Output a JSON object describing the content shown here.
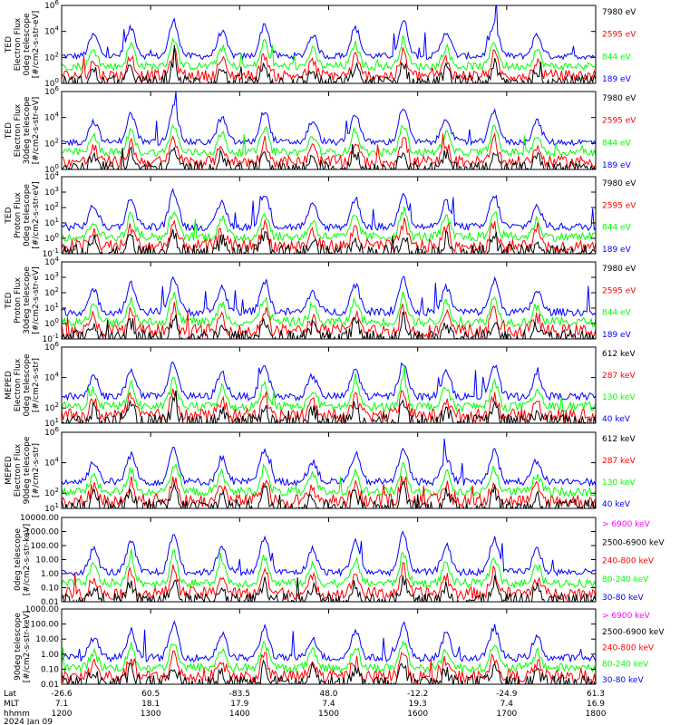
{
  "colors": {
    "black": "#000000",
    "blue": "#0000ff",
    "red": "#ff0000",
    "green": "#00ff00",
    "magenta": "#ff00ff"
  },
  "date_label": "2024 Jan 09",
  "bottom_axis": {
    "row_labels": [
      "Lat",
      "MLT",
      "hhmm"
    ],
    "ticks": [
      {
        "lat": "-26.6",
        "mlt": "7.1",
        "hhmm": "1200"
      },
      {
        "lat": "60.5",
        "mlt": "18.1",
        "hhmm": "1300"
      },
      {
        "lat": "-83.5",
        "mlt": "17.9",
        "hhmm": "1400"
      },
      {
        "lat": "48.0",
        "mlt": "7.4",
        "hhmm": "1500"
      },
      {
        "lat": "-12.2",
        "mlt": "19.3",
        "hhmm": "1600"
      },
      {
        "lat": "-24.9",
        "mlt": "7.4",
        "hhmm": "1700"
      },
      {
        "lat": "61.3",
        "mlt": "16.9",
        "hhmm": "1800"
      }
    ]
  },
  "chart_data": [
    {
      "type": "line",
      "ylabel_lines": [
        "TED",
        "Electron Flux",
        "0deg telescope",
        "[#/cm2-s-str-eV]"
      ],
      "ylim": [
        1,
        1000000
      ],
      "log": true,
      "y_ticks": [
        {
          "base": "10",
          "exp": "0"
        },
        {
          "base": "10",
          "exp": "2"
        },
        {
          "base": "10",
          "exp": "4"
        },
        {
          "base": "10",
          "exp": "6"
        }
      ],
      "legend": [
        {
          "label": "7980 eV",
          "color": "black"
        },
        {
          "label": "2595 eV",
          "color": "red"
        },
        {
          "label": "844 eV",
          "color": "green"
        },
        {
          "label": "189 eV",
          "color": "blue"
        }
      ]
    },
    {
      "type": "line",
      "ylabel_lines": [
        "TED",
        "Electron Flux",
        "30deg telescope",
        "[#/cm2-s-str-eV]"
      ],
      "ylim": [
        1,
        1000000
      ],
      "log": true,
      "y_ticks": [
        {
          "base": "10",
          "exp": "0"
        },
        {
          "base": "10",
          "exp": "2"
        },
        {
          "base": "10",
          "exp": "4"
        },
        {
          "base": "10",
          "exp": "6"
        }
      ],
      "legend": [
        {
          "label": "7980 eV",
          "color": "black"
        },
        {
          "label": "2595 eV",
          "color": "red"
        },
        {
          "label": "844 eV",
          "color": "green"
        },
        {
          "label": "189 eV",
          "color": "blue"
        }
      ]
    },
    {
      "type": "line",
      "ylabel_lines": [
        "TED",
        "Proton Flux",
        "0deg telescope",
        "[#/cm2-s-str-eV]"
      ],
      "ylim": [
        0.1,
        10000
      ],
      "log": true,
      "y_ticks": [
        {
          "base": "10",
          "exp": "-1"
        },
        {
          "base": "10",
          "exp": "0"
        },
        {
          "base": "10",
          "exp": "1"
        },
        {
          "base": "10",
          "exp": "2"
        },
        {
          "base": "10",
          "exp": "3"
        },
        {
          "base": "10",
          "exp": "4"
        }
      ],
      "legend": [
        {
          "label": "7980 eV",
          "color": "black"
        },
        {
          "label": "2595 eV",
          "color": "red"
        },
        {
          "label": "844 eV",
          "color": "green"
        },
        {
          "label": "189 eV",
          "color": "blue"
        }
      ]
    },
    {
      "type": "line",
      "ylabel_lines": [
        "TED",
        "Proton Flux",
        "30deg telescope",
        "[#/cm2-s-str-eV]"
      ],
      "ylim": [
        0.1,
        10000
      ],
      "log": true,
      "y_ticks": [
        {
          "base": "10",
          "exp": "-1"
        },
        {
          "base": "10",
          "exp": "0"
        },
        {
          "base": "10",
          "exp": "1"
        },
        {
          "base": "10",
          "exp": "2"
        },
        {
          "base": "10",
          "exp": "3"
        },
        {
          "base": "10",
          "exp": "4"
        }
      ],
      "legend": [
        {
          "label": "7980 eV",
          "color": "black"
        },
        {
          "label": "2595 eV",
          "color": "red"
        },
        {
          "label": "844 eV",
          "color": "green"
        },
        {
          "label": "189 eV",
          "color": "blue"
        }
      ]
    },
    {
      "type": "line",
      "ylabel_lines": [
        "MEPED",
        "Electron Flux",
        "0deg telescope",
        "[#/cm2-s-str]"
      ],
      "ylim": [
        10,
        1000000
      ],
      "log": true,
      "y_ticks": [
        {
          "base": "10",
          "exp": "1"
        },
        {
          "base": "10",
          "exp": "2"
        },
        {
          "base": "10",
          "exp": "4"
        },
        {
          "base": "10",
          "exp": "6"
        }
      ],
      "legend": [
        {
          "label": "612 keV",
          "color": "black"
        },
        {
          "label": "287 keV",
          "color": "red"
        },
        {
          "label": "130 keV",
          "color": "green"
        },
        {
          "label": "40 keV",
          "color": "blue"
        }
      ]
    },
    {
      "type": "line",
      "ylabel_lines": [
        "MEPED",
        "Electron Flux",
        "90deg telescope",
        "[#/cm2-s-str]"
      ],
      "ylim": [
        10,
        1000000
      ],
      "log": true,
      "y_ticks": [
        {
          "base": "10",
          "exp": "1"
        },
        {
          "base": "10",
          "exp": "2"
        },
        {
          "base": "10",
          "exp": "4"
        },
        {
          "base": "10",
          "exp": "6"
        }
      ],
      "legend": [
        {
          "label": "612 keV",
          "color": "black"
        },
        {
          "label": "287 keV",
          "color": "red"
        },
        {
          "label": "130 keV",
          "color": "green"
        },
        {
          "label": "40 keV",
          "color": "blue"
        }
      ]
    },
    {
      "type": "line",
      "ylabel_lines": [
        "0deg telescope",
        "[#/cm2-s-str-keV]"
      ],
      "ylim": [
        0.01,
        10000
      ],
      "log": true,
      "y_ticks": [
        {
          "base": "0.01",
          "exp": ""
        },
        {
          "base": "0.10",
          "exp": ""
        },
        {
          "base": "1.00",
          "exp": ""
        },
        {
          "base": "10.00",
          "exp": ""
        },
        {
          "base": "100.00",
          "exp": ""
        },
        {
          "base": "1000.00",
          "exp": ""
        },
        {
          "base": "10000.00",
          "exp": ""
        }
      ],
      "legend": [
        {
          "label": "> 6900 keV",
          "color": "magenta"
        },
        {
          "label": "2500-6900 keV",
          "color": "black"
        },
        {
          "label": "240-800 keV",
          "color": "red"
        },
        {
          "label": "80-240 keV",
          "color": "green"
        },
        {
          "label": "30-80 keV",
          "color": "blue"
        }
      ]
    },
    {
      "type": "line",
      "ylabel_lines": [
        "90deg telescope",
        "[#/cm2-s-str-keV]"
      ],
      "ylim": [
        0.01,
        1000
      ],
      "log": true,
      "y_ticks": [
        {
          "base": "0.01",
          "exp": ""
        },
        {
          "base": "0.10",
          "exp": ""
        },
        {
          "base": "1.00",
          "exp": ""
        },
        {
          "base": "10.00",
          "exp": ""
        },
        {
          "base": "100.00",
          "exp": ""
        },
        {
          "base": "1000.00",
          "exp": ""
        }
      ],
      "legend": [
        {
          "label": "> 6900 keV",
          "color": "magenta"
        },
        {
          "label": "2500-6900 keV",
          "color": "black"
        },
        {
          "label": "240-800 keV",
          "color": "red"
        },
        {
          "label": "80-240 keV",
          "color": "green"
        },
        {
          "label": "30-80 keV",
          "color": "blue"
        }
      ]
    }
  ]
}
